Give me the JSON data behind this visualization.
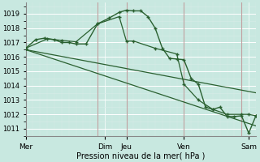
{
  "background_color": "#c8e8e0",
  "grid_color": "#b0d8d0",
  "vline_color": "#c0a0a0",
  "line_color": "#2a6030",
  "figsize": [
    3.2,
    2.0
  ],
  "dpi": 100,
  "ylabel": "Pression niveau de la mer( hPa )",
  "ylim": [
    1010.5,
    1019.8
  ],
  "yticks": [
    1011,
    1012,
    1013,
    1014,
    1015,
    1016,
    1017,
    1018,
    1019
  ],
  "ytick_fontsize": 6.0,
  "xtick_fontsize": 6.5,
  "xlabel_fontsize": 7.0,
  "xlim": [
    0,
    16
  ],
  "day_labels": [
    "Mer",
    "Dim",
    "Jeu",
    "Ven",
    "Sam"
  ],
  "day_positions": [
    0,
    5.5,
    7,
    11,
    15.5
  ],
  "vline_positions": [
    5,
    7,
    11,
    15
  ],
  "series1_x": [
    0,
    0.7,
    1.3,
    2,
    2.5,
    3,
    3.5,
    4.2,
    5,
    5.8,
    6.5,
    7,
    7.5,
    8,
    8.5,
    9,
    9.5,
    10,
    10.5,
    11,
    11.5,
    12,
    12.5,
    13,
    13.5,
    14,
    14.5,
    15,
    15.5,
    16
  ],
  "series1_y": [
    1016.6,
    1017.2,
    1017.3,
    1017.2,
    1017.0,
    1017.0,
    1016.9,
    1016.9,
    1018.3,
    1018.7,
    1019.1,
    1019.25,
    1019.2,
    1019.2,
    1018.8,
    1018.0,
    1016.6,
    1015.9,
    1015.85,
    1015.8,
    1014.5,
    1014.1,
    1012.5,
    1012.35,
    1012.5,
    1011.85,
    1011.85,
    1011.9,
    1010.7,
    1011.9
  ],
  "series2_x": [
    0,
    1.5,
    2.5,
    3.5,
    5,
    6.5,
    7,
    7.5,
    9,
    10.5,
    11,
    12,
    13,
    14,
    15,
    15.5,
    16
  ],
  "series2_y": [
    1016.6,
    1017.25,
    1017.15,
    1017.05,
    1018.3,
    1018.8,
    1017.1,
    1017.1,
    1016.6,
    1016.2,
    1014.1,
    1013.0,
    1012.35,
    1012.0,
    1012.0,
    1012.0,
    1011.9
  ],
  "series3_x": [
    0,
    16
  ],
  "series3_y": [
    1016.5,
    1013.5
  ],
  "series4_x": [
    0,
    16
  ],
  "series4_y": [
    1016.5,
    1011.2
  ]
}
